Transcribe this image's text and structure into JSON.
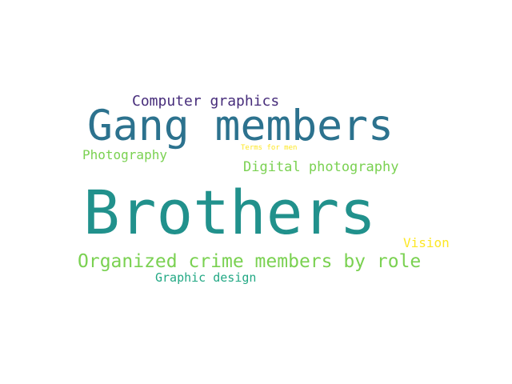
{
  "words": [
    {
      "text": "Brothers",
      "color": "#21918c"
    },
    {
      "text": "Gang members",
      "color": "#2c728e"
    },
    {
      "text": "Organized crime members by role",
      "color": "#7ad151"
    },
    {
      "text": "Computer graphics",
      "color": "#472d7b"
    },
    {
      "text": "Digital photography",
      "color": "#7ad151"
    },
    {
      "text": "Photography",
      "color": "#7ad151"
    },
    {
      "text": "Graphic design",
      "color": "#22a884"
    },
    {
      "text": "Vision",
      "color": "#fde725"
    },
    {
      "text": "Terms for men",
      "color": "#fde725"
    }
  ]
}
